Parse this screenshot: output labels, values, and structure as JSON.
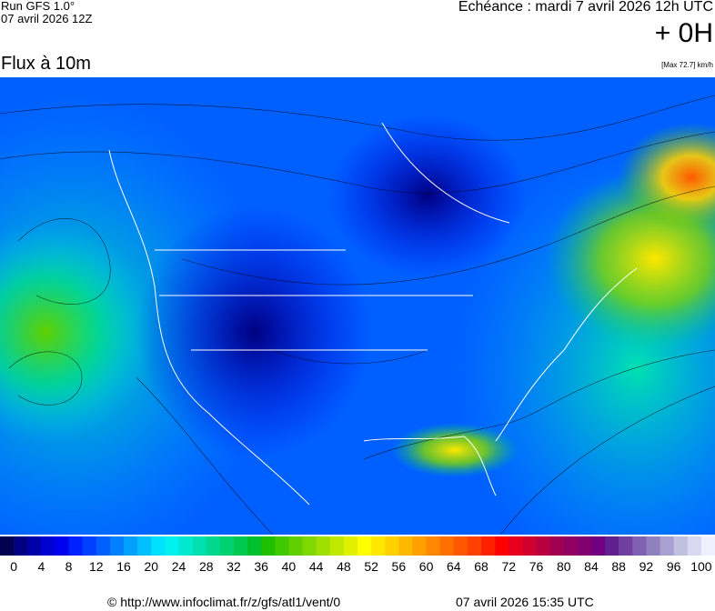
{
  "header": {
    "run": "Run GFS 1.0°",
    "run_date": "07 avril 2026 12Z",
    "forecast": "Echéance : mardi 7 avril 2026 12h UTC",
    "lead": "+ 0H",
    "parameter": "Flux à 10m",
    "max": "[Max 72.7] km/h"
  },
  "colorbar": {
    "ticks": [
      0,
      4,
      8,
      12,
      16,
      20,
      24,
      28,
      32,
      36,
      40,
      44,
      48,
      52,
      56,
      60,
      64,
      68,
      72,
      76,
      80,
      84,
      88,
      92,
      96,
      100
    ],
    "colors": [
      "#000050",
      "#000080",
      "#0000a8",
      "#0000d0",
      "#0000f0",
      "#0020ff",
      "#0040ff",
      "#0060ff",
      "#0080ff",
      "#00a0ff",
      "#00c0ff",
      "#00e0ff",
      "#00f0f0",
      "#00e8d0",
      "#00e0b0",
      "#00d890",
      "#00d070",
      "#00c850",
      "#00c030",
      "#20c000",
      "#40c800",
      "#60d000",
      "#80d800",
      "#a0e000",
      "#c0e800",
      "#e0f000",
      "#ffff00",
      "#ffe800",
      "#ffd000",
      "#ffb800",
      "#ffa000",
      "#ff8800",
      "#ff7000",
      "#ff5800",
      "#ff4000",
      "#ff2000",
      "#ff0000",
      "#e80020",
      "#d00030",
      "#b80040",
      "#a00050",
      "#900060",
      "#800070",
      "#700080",
      "#602090",
      "#7040a0",
      "#8060b0",
      "#9080c0",
      "#a8a0d0",
      "#c0c0e0",
      "#d8d8f0",
      "#f0f0ff"
    ]
  },
  "footer": {
    "source": "© http://www.infoclimat.fr/z/gfs/atl1/vent/0",
    "generated": "07 avril 2026 15:35 UTC"
  }
}
